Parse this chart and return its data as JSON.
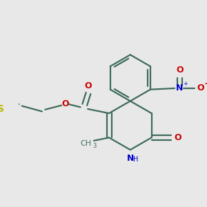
{
  "bg_color": "#e8e8e8",
  "bond_color": "#3d6b5a",
  "bond_width": 1.6,
  "atom_colors": {
    "O": "#cc0000",
    "N": "#0000cc",
    "S": "#bbbb00",
    "C": "#3d6b5a"
  }
}
